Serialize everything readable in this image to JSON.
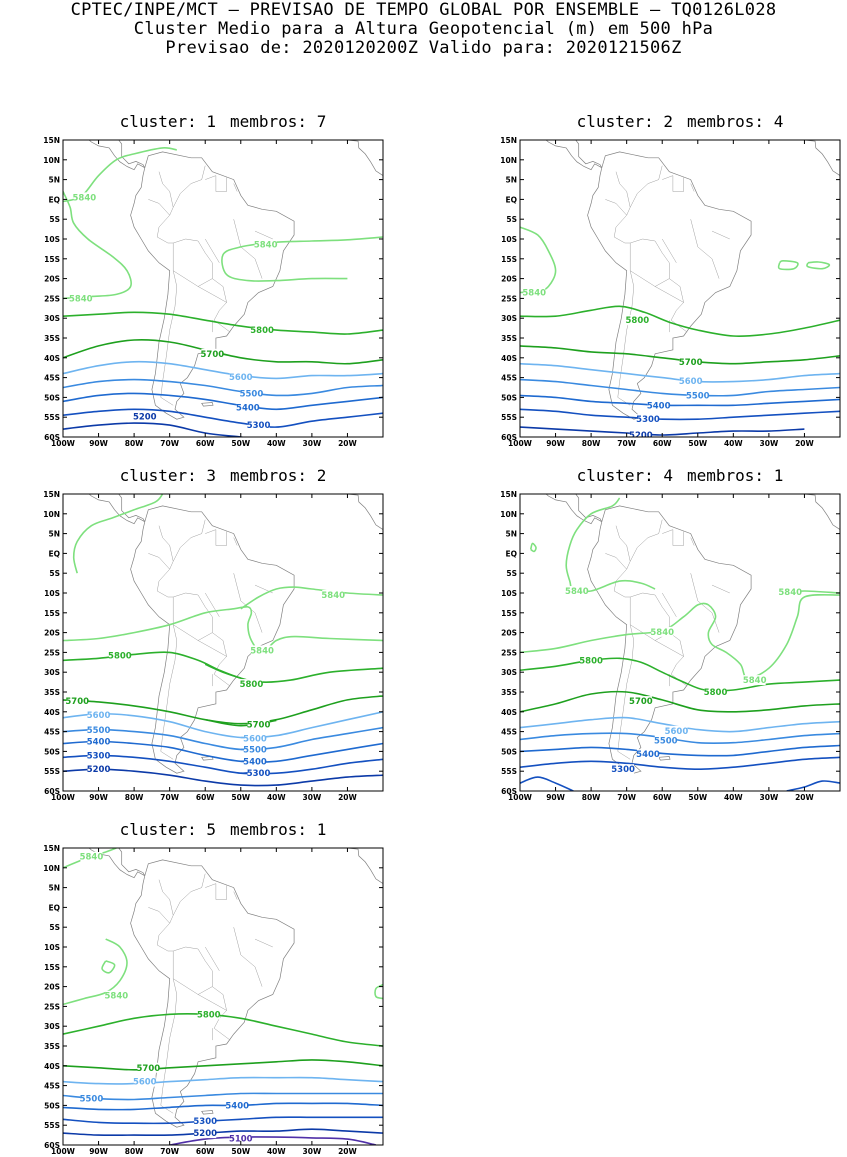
{
  "header": {
    "line1": "CPTEC/INPE/MCT – PREVISAO DE TEMPO GLOBAL POR ENSEMBLE – TQ0126L028",
    "line2": "Cluster Medio para a Altura Geopotencial (m) em 500 hPa",
    "line3": "Previsao de: 2020120200Z    Valido para: 2020121506Z"
  },
  "axes": {
    "lat_labels": [
      "15N",
      "10N",
      "5N",
      "EQ",
      "5S",
      "10S",
      "15S",
      "20S",
      "25S",
      "30S",
      "35S",
      "40S",
      "45S",
      "50S",
      "55S",
      "60S"
    ],
    "lon_labels": [
      "100W",
      "90W",
      "80W",
      "70W",
      "60W",
      "50W",
      "40W",
      "30W",
      "20W"
    ]
  },
  "colors": {
    "5840": "#7ee07e",
    "5800": "#2cb02c",
    "5700": "#1ea01e",
    "5600": "#6eb4f0",
    "5500": "#3a8ae0",
    "5400": "#1f6ad0",
    "5300": "#1450c0",
    "5200": "#0c3aa8",
    "5100": "#5030a8"
  },
  "clusters": [
    {
      "id": "1",
      "members": "7",
      "cluster_label": "cluster:",
      "members_label": "membros:",
      "contour_labels": [
        "5840",
        "5840",
        "5840",
        "5800",
        "5700",
        "5600",
        "5500",
        "5400",
        "5300",
        "5200"
      ]
    },
    {
      "id": "2",
      "members": "4",
      "cluster_label": "cluster:",
      "members_label": "membros:",
      "contour_labels": [
        "5840",
        "5800",
        "5700",
        "5600",
        "5500",
        "5400",
        "5300",
        "5200"
      ]
    },
    {
      "id": "3",
      "members": "2",
      "cluster_label": "cluster:",
      "members_label": "membros:",
      "contour_labels": [
        "5840",
        "5840",
        "5800",
        "5800",
        "5700",
        "5700",
        "5600",
        "5600",
        "5500",
        "5500",
        "5400",
        "5400",
        "5300",
        "5300",
        "5200"
      ]
    },
    {
      "id": "4",
      "members": "1",
      "cluster_label": "cluster:",
      "members_label": "membros:",
      "contour_labels": [
        "5840",
        "5840",
        "5840",
        "5840",
        "5800",
        "5800",
        "5700",
        "5600",
        "5500",
        "5400",
        "5300"
      ]
    },
    {
      "id": "5",
      "members": "1",
      "cluster_label": "cluster:",
      "members_label": "membros:",
      "contour_labels": [
        "5840",
        "5840",
        "5800",
        "5700",
        "5600",
        "5500",
        "5400",
        "5300",
        "5200",
        "5100"
      ]
    }
  ]
}
